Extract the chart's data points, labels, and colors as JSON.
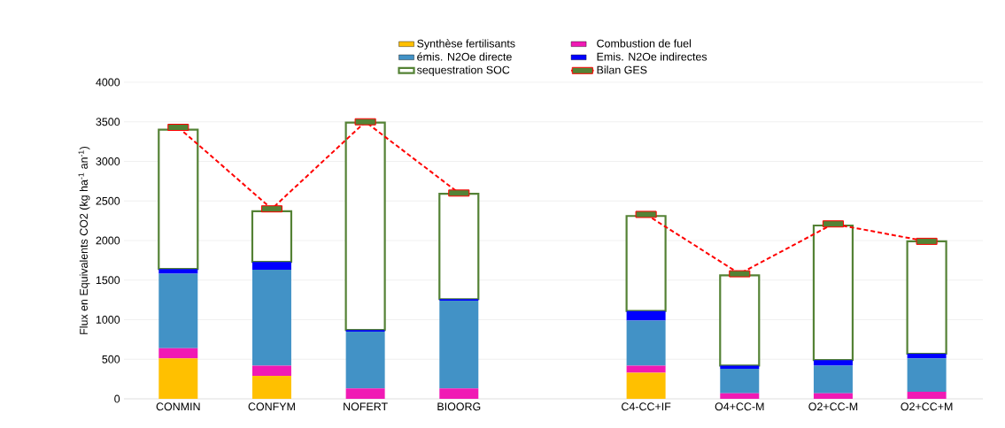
{
  "chart_data": {
    "type": "bar",
    "stacked": true,
    "ylabel": "Flux en Equivalents CO2 (kg ha$^{-1}$ an$^{-1}$)",
    "categories": [
      "CONMIN",
      "CONFYM",
      "NOFERT",
      "BIOORG",
      null,
      "C4-CC+IF",
      "O4+CC-M",
      "O2+CC-M",
      "O2+CC+M"
    ],
    "series": [
      {
        "name": "Synthèse fertilisants",
        "color": "#ffc000",
        "values": [
          510,
          290,
          0,
          0,
          null,
          330,
          0,
          0,
          0
        ]
      },
      {
        "name": "Combustion de fuel",
        "color": "#f01ab4",
        "values": [
          130,
          130,
          130,
          130,
          null,
          90,
          70,
          70,
          90
        ]
      },
      {
        "name": "émis. N2Oe directe",
        "color": "#4292c6",
        "values": [
          940,
          1210,
          720,
          1110,
          null,
          570,
          310,
          350,
          420
        ]
      },
      {
        "name": "Emis. N2Oe indirectes",
        "color": "#0000ff",
        "values": [
          60,
          100,
          20,
          20,
          null,
          120,
          40,
          70,
          60
        ]
      },
      {
        "name": "sequestration SOC",
        "color": "#548235",
        "values": [
          1760,
          640,
          2620,
          1330,
          null,
          1200,
          1140,
          1700,
          1420
        ]
      },
      {
        "name": "Bilan GES",
        "type": "line",
        "color": "#ff0000",
        "line_style": "dashed",
        "marker": "square",
        "values": [
          3430,
          2400,
          3500,
          2600,
          null,
          2330,
          1580,
          2210,
          1990
        ]
      }
    ],
    "ylim": [
      0,
      4000
    ],
    "yticks": [
      0,
      500,
      1000,
      1500,
      2000,
      2500,
      3000,
      3500,
      4000
    ],
    "grid": "y",
    "legend": "top"
  }
}
